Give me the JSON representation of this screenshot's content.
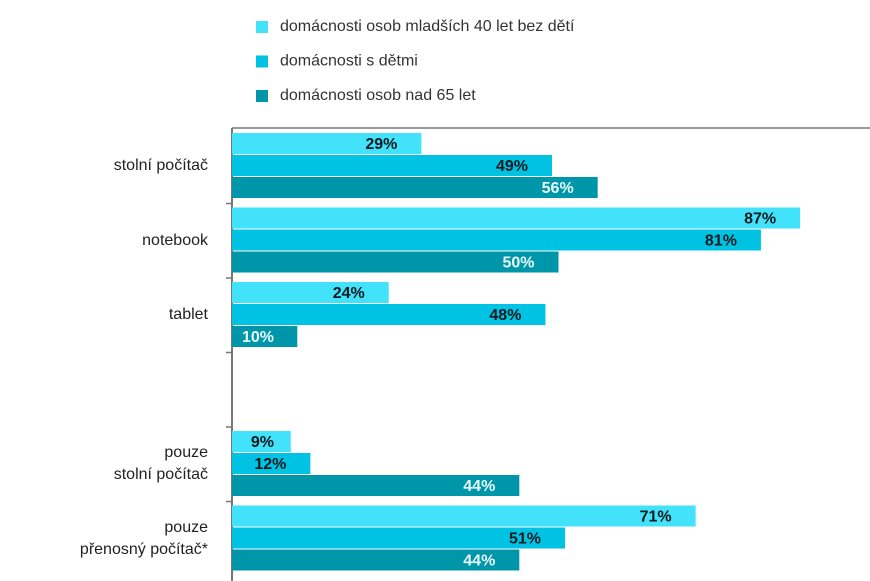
{
  "chart_data": {
    "type": "bar",
    "orientation": "horizontal",
    "categories": [
      "stolní počítač",
      "notebook",
      "tablet",
      null,
      "pouze\nstolní počítač",
      "pouze\npřenosný počítač*"
    ],
    "series": [
      {
        "name": "domácnosti osob mladších 40 let bez dětí",
        "color": "#41e2fa",
        "values": [
          29,
          87,
          24,
          null,
          9,
          71
        ],
        "value_labels": [
          "29%",
          "87%",
          "24%",
          null,
          "9%",
          "71%"
        ]
      },
      {
        "name": "domácnosti s dětmi",
        "color": "#00c2e2",
        "values": [
          49,
          81,
          48,
          null,
          12,
          51
        ],
        "value_labels": [
          "49%",
          "81%",
          "48%",
          null,
          "12%",
          "51%"
        ]
      },
      {
        "name": "domácnosti osob nad 65 let",
        "color": "#0096aa",
        "values": [
          56,
          50,
          10,
          null,
          44,
          44
        ],
        "value_labels": [
          "56%",
          "50%",
          "10%",
          null,
          "44%",
          "44%"
        ]
      }
    ]
  }
}
